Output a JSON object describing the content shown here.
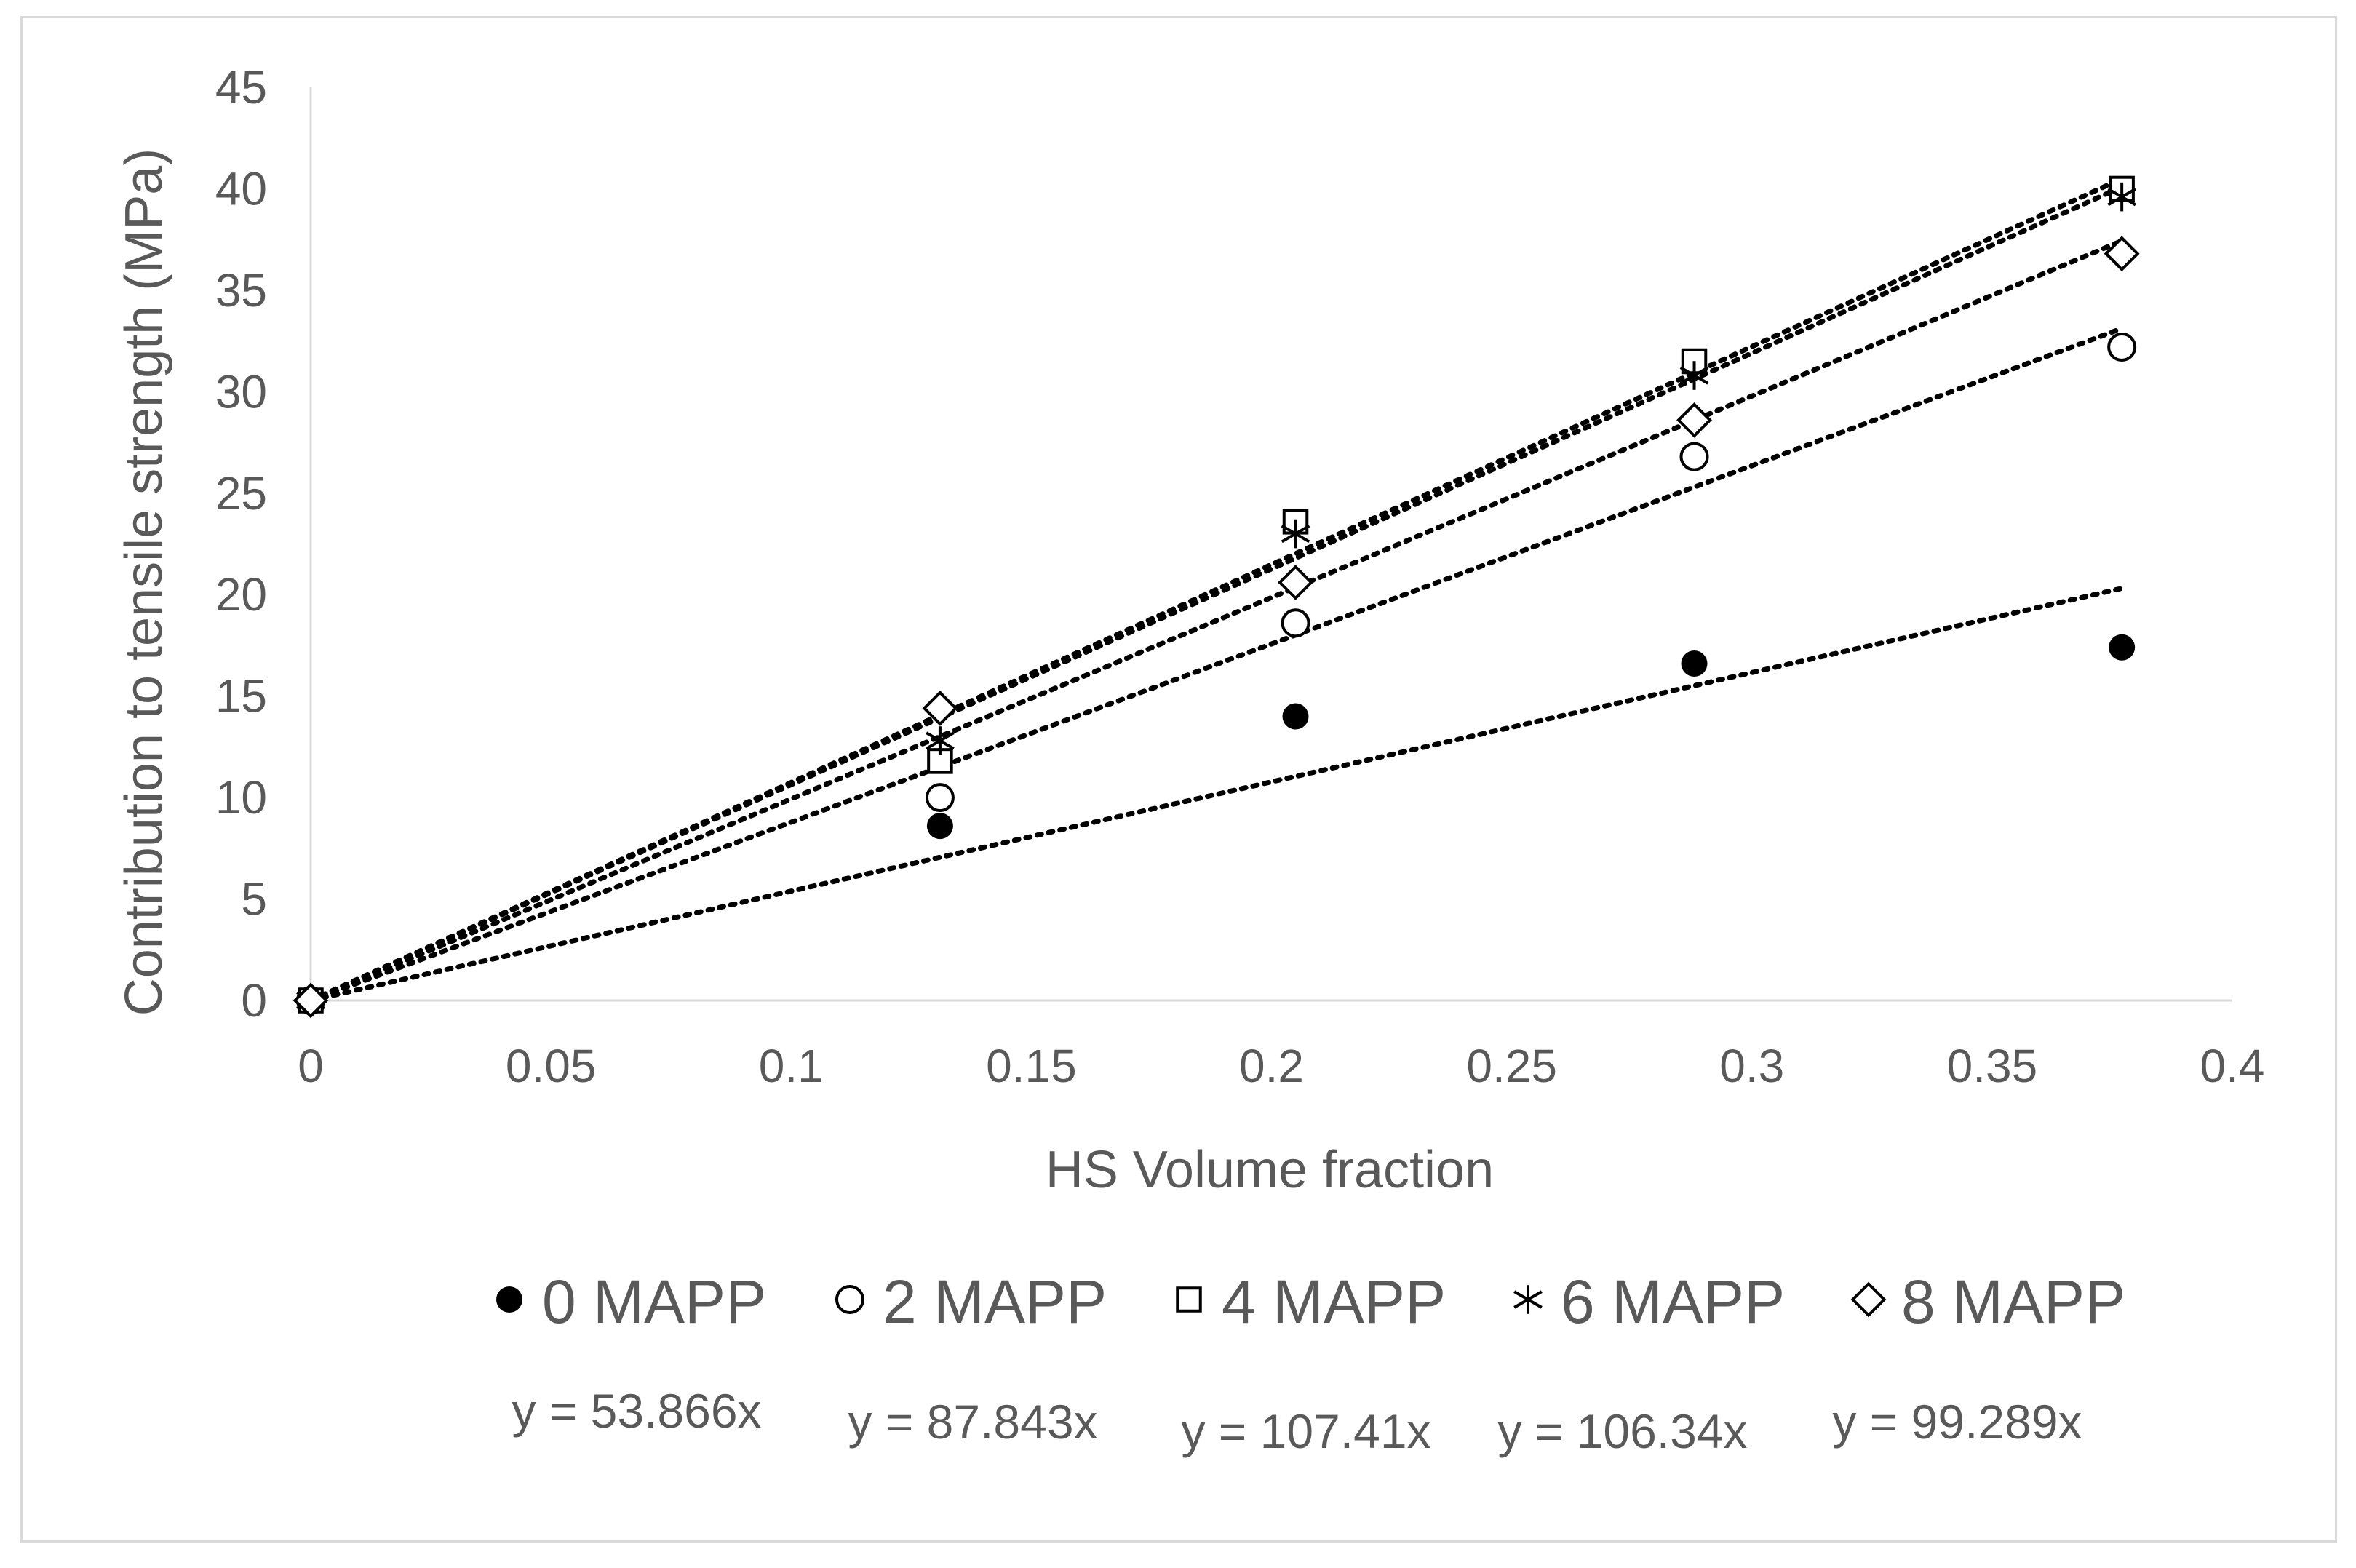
{
  "chart_data": {
    "type": "scatter",
    "title": "",
    "xlabel": "HS Volume fraction",
    "ylabel": "Contribution to tensile strength (MPa)",
    "xlim": [
      0,
      0.4
    ],
    "ylim": [
      0,
      45
    ],
    "xticks": [
      0,
      0.05,
      0.1,
      0.15,
      0.2,
      0.25,
      0.3,
      0.35,
      0.4
    ],
    "xtick_labels": [
      "0",
      "0.05",
      "0.1",
      "0.15",
      "0.2",
      "0.25",
      "0.3",
      "0.35",
      "0.4"
    ],
    "yticks": [
      0,
      5,
      10,
      15,
      20,
      25,
      30,
      35,
      40,
      45
    ],
    "ytick_labels": [
      "0",
      "5",
      "10",
      "15",
      "20",
      "25",
      "30",
      "35",
      "40",
      "45"
    ],
    "grid": false,
    "legend_position": "bottom",
    "trendline_style": "dotted linear through origin",
    "series": [
      {
        "name": "0 MAPP",
        "marker": "filled-circle",
        "x": [
          0,
          0.131,
          0.205,
          0.288,
          0.377
        ],
        "y": [
          0,
          8.6,
          14.0,
          16.6,
          17.4
        ],
        "slope": 53.866,
        "equation": "y = 53.866x"
      },
      {
        "name": "2 MAPP",
        "marker": "open-circle",
        "x": [
          0,
          0.131,
          0.205,
          0.288,
          0.377
        ],
        "y": [
          0,
          10.0,
          18.6,
          26.8,
          32.2
        ],
        "slope": 87.843,
        "equation": "y = 87.843x"
      },
      {
        "name": "4 MAPP",
        "marker": "open-square",
        "x": [
          0,
          0.131,
          0.205,
          0.288,
          0.377
        ],
        "y": [
          0,
          11.8,
          23.6,
          31.5,
          40.0
        ],
        "slope": 107.41,
        "equation": "y = 107.41x"
      },
      {
        "name": "6 MAPP",
        "marker": "star",
        "x": [
          0,
          0.131,
          0.205,
          0.288,
          0.377
        ],
        "y": [
          0,
          12.8,
          23.0,
          30.8,
          39.6
        ],
        "slope": 106.34,
        "equation": "y = 106.34x"
      },
      {
        "name": "8 MAPP",
        "marker": "open-diamond",
        "x": [
          0,
          0.131,
          0.205,
          0.288,
          0.377
        ],
        "y": [
          0,
          14.4,
          20.6,
          28.6,
          36.8
        ],
        "slope": 99.289,
        "equation": "y = 99.289x"
      }
    ]
  }
}
